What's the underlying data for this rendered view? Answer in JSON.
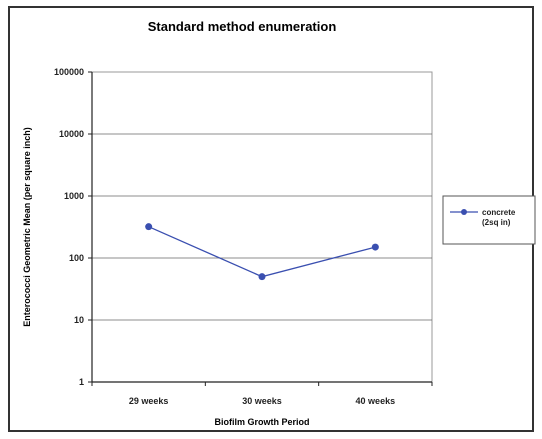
{
  "chart_data": {
    "type": "line",
    "title": "Standard method enumeration",
    "xlabel": "Biofilm Growth Period",
    "ylabel": "Enterococci Geometric Mean (per square inch)",
    "categories": [
      "29 weeks",
      "30 weeks",
      "40 weeks"
    ],
    "y_scale": "log",
    "ylim": [
      1,
      100000
    ],
    "y_tick_labels": [
      "1",
      "10",
      "100",
      "1000",
      "10000",
      "100000"
    ],
    "series": [
      {
        "name": "concrete (2sq in)",
        "values": [
          320,
          50,
          150
        ],
        "color": "#3a4fb0"
      }
    ],
    "grid": true,
    "legend_position": "right"
  }
}
